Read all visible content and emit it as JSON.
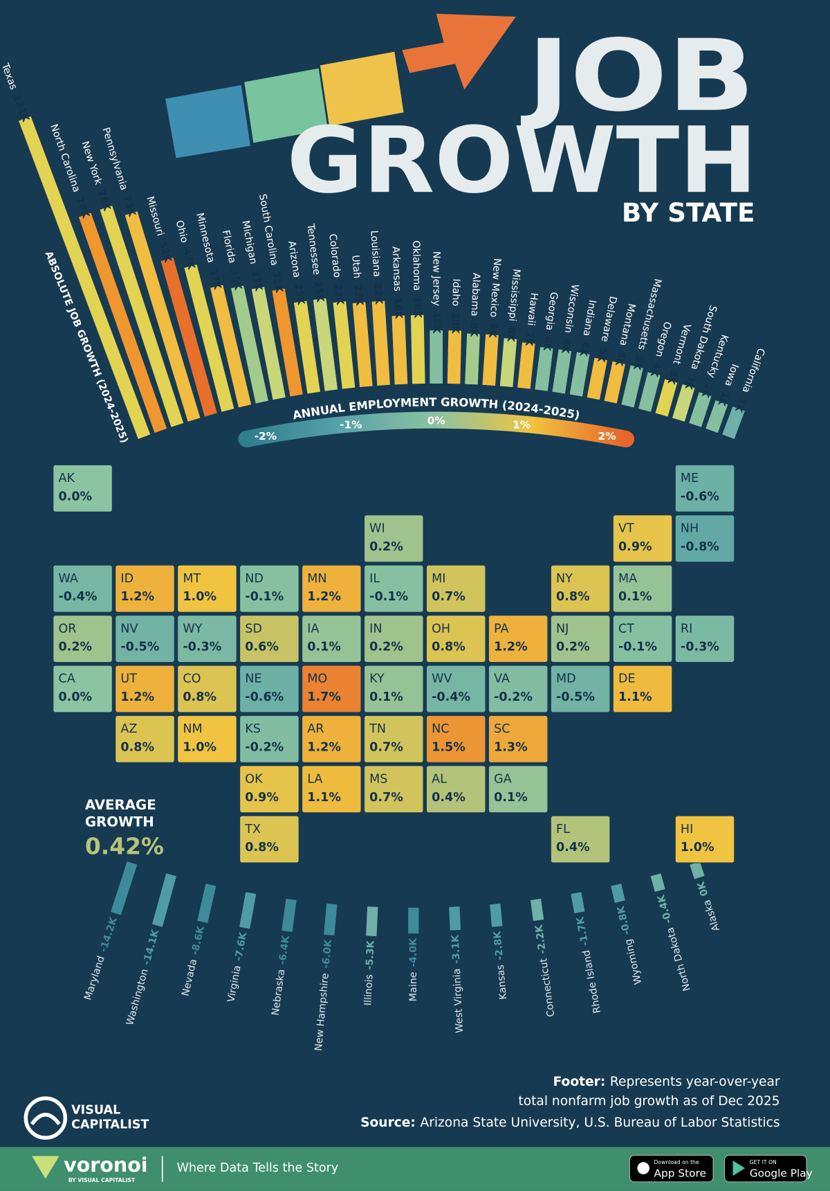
{
  "header": {
    "title_lines": [
      "JOB",
      "GROWTH"
    ],
    "subtitle": "BY STATE"
  },
  "chart_data": [
    {
      "type": "bar",
      "title": "ABSOLUTE JOB GROWTH (2024-2025)",
      "categories": [
        "Texas",
        "North Carolina",
        "New York",
        "Pennsylvania",
        "Missouri",
        "Ohio",
        "Minnesota",
        "Florida",
        "Michigan",
        "South Carolina",
        "Arizona",
        "Tennessee",
        "Colorado",
        "Utah",
        "Louisiana",
        "Arkansas",
        "Oklahoma",
        "New Jersey",
        "Idaho",
        "Alabama",
        "New Mexico",
        "Mississippi",
        "Hawaii",
        "Georgia",
        "Wisconsin",
        "Indiana",
        "Delaware",
        "Montana",
        "Massachusetts",
        "Oregon",
        "Vermont",
        "South Dakota",
        "Kentucky",
        "Iowa",
        "California"
      ],
      "values": [
        121,
        78,
        78,
        73,
        52,
        47,
        37,
        35,
        33,
        31,
        25,
        25,
        23,
        22,
        22,
        16,
        16,
        10,
        10,
        9,
        9,
        8,
        7,
        6,
        6,
        6,
        5,
        5,
        5,
        4,
        3,
        3,
        2,
        1,
        1
      ],
      "value_labels": [
        "121K",
        "78K",
        "78K",
        "73K",
        "52K",
        "47K",
        "37K",
        "35K",
        "33K",
        "31K",
        "25K",
        "25K",
        "23K",
        "22K",
        "22K",
        "16K",
        "16K",
        "10K",
        "10K",
        "9K",
        "9K",
        "8K",
        "7K",
        "6K",
        "6K",
        "6K",
        "5K",
        "5K",
        "5K",
        "4K",
        "3K",
        "3K",
        "2K",
        "1K",
        "1K"
      ],
      "colors": [
        "#e3d352",
        "#f0962e",
        "#e3d352",
        "#f0bd40",
        "#e8702a",
        "#e3d352",
        "#f0bd40",
        "#a3cc8c",
        "#c9d67a",
        "#f0962e",
        "#e3d352",
        "#c9d67a",
        "#e3d352",
        "#f0bd40",
        "#f0bd40",
        "#f0bd40",
        "#e3d352",
        "#86bfa0",
        "#f0bd40",
        "#a3cc8c",
        "#f0bd40",
        "#c9d67a",
        "#f0bd40",
        "#86bfa0",
        "#86bfa0",
        "#86bfa0",
        "#f0bd40",
        "#f0bd40",
        "#86bfa0",
        "#86bfa0",
        "#e3d352",
        "#c9d67a",
        "#86bfa0",
        "#86bfa0",
        "#6fb0a8"
      ]
    },
    {
      "type": "bar",
      "categories": [
        "Maryland",
        "Washington",
        "Nevada",
        "Virginia",
        "Nebraska",
        "New Hampshire",
        "Illinois",
        "Maine",
        "West Virginia",
        "Kansas",
        "Connecticut",
        "Rhode Island",
        "Wyoming",
        "North Dakota",
        "Alaska"
      ],
      "values": [
        -14.2,
        -14.1,
        -8.6,
        -7.6,
        -6.4,
        -6.0,
        -5.3,
        -4.0,
        -3.1,
        -2.8,
        -2.2,
        -1.7,
        -0.8,
        -0.4,
        0
      ],
      "value_labels": [
        "-14.2K",
        "-14.1K",
        "-8.6K",
        "-7.6K",
        "-6.4K",
        "-6.0K",
        "-5.3K",
        "-4.0K",
        "-3.1K",
        "-2.8K",
        "-2.2K",
        "-1.7K",
        "-0.8K",
        "-0.4K",
        "0K"
      ],
      "colors": [
        "#3d8a9b",
        "#4f9ca6",
        "#3d8a9b",
        "#4f9ca6",
        "#3d8a9b",
        "#3d8a9b",
        "#6fb0a8",
        "#3d8a9b",
        "#4f9ca6",
        "#4f9ca6",
        "#6fb0a8",
        "#4f9ca6",
        "#4f9ca6",
        "#6fb0a8",
        "#6fb0a8"
      ]
    },
    {
      "type": "map",
      "categories": [
        "WA",
        "OR",
        "CA",
        "ID",
        "NV",
        "MT",
        "WY",
        "UT",
        "AZ",
        "ND",
        "SD",
        "NE",
        "CO",
        "NM",
        "KS",
        "OK",
        "TX",
        "MN",
        "IA",
        "MO",
        "AR",
        "LA",
        "WI",
        "IL",
        "MI",
        "IN",
        "KY",
        "TN",
        "MS",
        "AL",
        "OH",
        "GA",
        "FL",
        "SC",
        "NC",
        "VA",
        "WV",
        "PA",
        "NY",
        "VT",
        "NH",
        "ME",
        "MA",
        "RI",
        "CT",
        "NJ",
        "DE",
        "MD",
        "AK",
        "HI"
      ],
      "values": [
        -0.4,
        0.2,
        0.0,
        1.2,
        -0.5,
        1.0,
        -0.3,
        1.2,
        0.8,
        -0.1,
        0.6,
        -0.6,
        0.8,
        1.0,
        -0.2,
        0.9,
        0.8,
        1.2,
        0.1,
        1.7,
        1.2,
        1.1,
        0.2,
        -0.1,
        0.7,
        0.2,
        0.1,
        0.7,
        0.7,
        0.4,
        0.8,
        0.1,
        0.4,
        1.3,
        1.5,
        -0.2,
        -0.4,
        1.2,
        0.8,
        0.9,
        -0.8,
        -0.6,
        0.1,
        -0.3,
        -0.1,
        0.2,
        1.1,
        -0.5,
        0.0,
        1.0
      ],
      "value_labels": [
        "-0.4%",
        "0.2%",
        "0.0%",
        "1.2%",
        "-0.5%",
        "1.0%",
        "-0.3%",
        "1.2%",
        "0.8%",
        "-0.1%",
        "0.6%",
        "-0.6%",
        "0.8%",
        "1.0%",
        "-0.2%",
        "0.9%",
        "0.8%",
        "1.2%",
        "0.1%",
        "1.7%",
        "1.2%",
        "1.1%",
        "0.2%",
        "-0.1%",
        "0.7%",
        "0.2%",
        "0.1%",
        "0.7%",
        "0.7%",
        "0.4%",
        "0.8%",
        "0.1%",
        "0.4%",
        "1.3%",
        "1.5%",
        "-0.2%",
        "-0.4%",
        "1.2%",
        "0.8%",
        "0.9%",
        "-0.8%",
        "-0.6%",
        "0.1%",
        "-0.3%",
        "-0.1%",
        "0.2%",
        "1.1%",
        "-0.5%",
        "0.0%",
        "1.0%"
      ],
      "colorbar": {
        "title": "ANNUAL EMPLOYMENT GROWTH (2024-2025)",
        "ticks": [
          {
            "value": -2,
            "label": "-2%"
          },
          {
            "value": -1,
            "label": "-1%"
          },
          {
            "value": 0,
            "label": "0%"
          },
          {
            "value": 1,
            "label": "1%"
          },
          {
            "value": 2,
            "label": "2%"
          }
        ],
        "colors": [
          "#2f7d8f",
          "#58a3a8",
          "#8cc3a0",
          "#f0c440",
          "#e8652a"
        ]
      },
      "average": {
        "label_lines": [
          "AVERAGE",
          "GROWTH"
        ],
        "value": 0.42,
        "value_label": "0.42%"
      }
    }
  ],
  "footer": {
    "note_label": "Footer:",
    "note_lines": [
      "Represents year-over-year",
      "total nonfarm job growth as of Dec 2025"
    ],
    "source_label": "Source:",
    "source": "Arizona State University, U.S. Bureau of Labor Statistics"
  },
  "brand": {
    "name_lines": [
      "VISUAL",
      "CAPITALIST"
    ]
  },
  "banner": {
    "name": "voronoi",
    "byline": "BY VISUAL CAPITALIST",
    "tagline": "Where Data Tells the Story",
    "app_store": [
      "Download on the",
      "App Store"
    ],
    "google_play": [
      "GET IT ON",
      "Google Play"
    ]
  }
}
